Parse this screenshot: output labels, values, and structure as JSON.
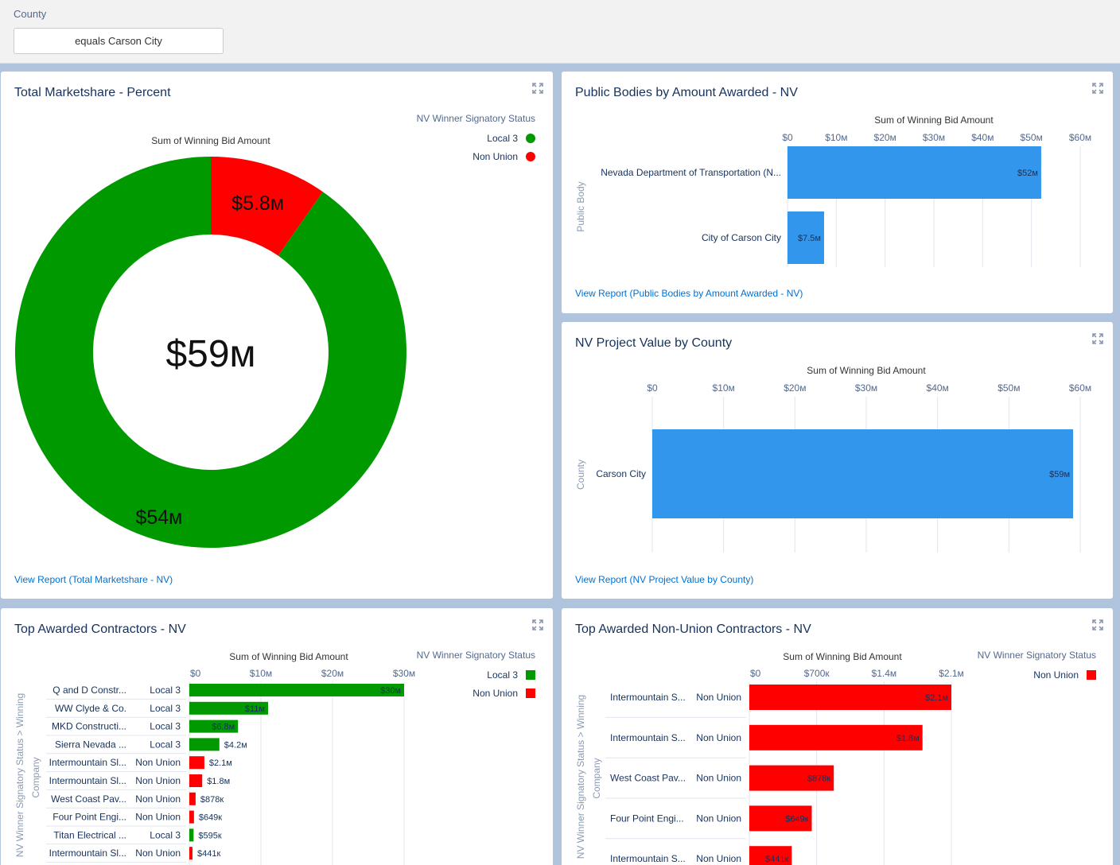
{
  "filter": {
    "label": "County",
    "value": "equals Carson City"
  },
  "colors": {
    "local3": "#009900",
    "non_union": "#ff0000",
    "bar_blue": "#3296ed",
    "link": "#0070d2"
  },
  "cards": {
    "marketshare": {
      "title": "Total Marketshare - Percent",
      "view_report": "View Report (Total Marketshare - NV)",
      "legend_title": "NV Winner Signatory Status",
      "legend": [
        "Local 3",
        "Non Union"
      ],
      "chart_data": {
        "type": "pie",
        "title": "Sum of Winning Bid Amount",
        "center_label": "$59м",
        "slices": [
          {
            "label": "Local 3",
            "value": 54,
            "display": "$54м",
            "color": "#009900"
          },
          {
            "label": "Non Union",
            "value": 5.8,
            "display": "$5.8м",
            "color": "#ff0000"
          }
        ]
      }
    },
    "public_bodies": {
      "title": "Public Bodies by Amount Awarded - NV",
      "view_report": "View Report (Public Bodies by Amount Awarded - NV)",
      "y_axis_label": "Public Body",
      "chart_data": {
        "type": "bar",
        "title": "Sum of Winning Bid Amount",
        "xlim": [
          0,
          60
        ],
        "ticks": [
          "$0",
          "$10м",
          "$20м",
          "$30м",
          "$40м",
          "$50м",
          "$60м"
        ],
        "categories": [
          "Nevada Department of Transportation (N...",
          "City of Carson City"
        ],
        "values": [
          52,
          7.5
        ],
        "labels": [
          "$52м",
          "$7.5м"
        ]
      }
    },
    "county": {
      "title": "NV Project Value by County",
      "view_report": "View Report (NV Project Value by County)",
      "y_axis_label": "County",
      "chart_data": {
        "type": "bar",
        "title": "Sum of Winning Bid Amount",
        "xlim": [
          0,
          60
        ],
        "ticks": [
          "$0",
          "$10м",
          "$20м",
          "$30м",
          "$40м",
          "$50м",
          "$60м"
        ],
        "categories": [
          "Carson City"
        ],
        "values": [
          59
        ],
        "labels": [
          "$59м"
        ]
      }
    },
    "top_contractors": {
      "title": "Top Awarded Contractors - NV",
      "legend_title": "NV Winner Signatory Status",
      "legend": [
        "Local 3",
        "Non Union"
      ],
      "y_axis_label_1": "NV Winner Signatory Status  >  Winning",
      "y_axis_label_2": "Company",
      "chart_data": {
        "type": "bar",
        "title": "Sum of Winning Bid Amount",
        "xlim": [
          0,
          30
        ],
        "ticks": [
          "$0",
          "$10м",
          "$20м",
          "$30м"
        ],
        "rows": [
          {
            "company": "Q and D Constr...",
            "status": "Local 3",
            "value": 30,
            "label": "$30м"
          },
          {
            "company": "WW Clyde & Co.",
            "status": "Local 3",
            "value": 11,
            "label": "$11м"
          },
          {
            "company": "MKD Constructi...",
            "status": "Local 3",
            "value": 6.8,
            "label": "$6.8м"
          },
          {
            "company": "Sierra Nevada ...",
            "status": "Local 3",
            "value": 4.2,
            "label": "$4.2м"
          },
          {
            "company": "Intermountain Sl...",
            "status": "Non Union",
            "value": 2.1,
            "label": "$2.1м"
          },
          {
            "company": "Intermountain Sl...",
            "status": "Non Union",
            "value": 1.8,
            "label": "$1.8м"
          },
          {
            "company": "West Coast Pav...",
            "status": "Non Union",
            "value": 0.878,
            "label": "$878к"
          },
          {
            "company": "Four Point Engi...",
            "status": "Non Union",
            "value": 0.649,
            "label": "$649к"
          },
          {
            "company": "Titan Electrical ...",
            "status": "Local 3",
            "value": 0.595,
            "label": "$595к"
          },
          {
            "company": "Intermountain Sl...",
            "status": "Non Union",
            "value": 0.441,
            "label": "$441к"
          }
        ]
      }
    },
    "non_union": {
      "title": "Top Awarded Non-Union Contractors - NV",
      "legend_title": "NV Winner Signatory Status",
      "legend": [
        "Non Union"
      ],
      "y_axis_label_1": "NV Winner Signatory Status  >  Winning",
      "y_axis_label_2": "Company",
      "chart_data": {
        "type": "bar",
        "title": "Sum of Winning Bid Amount",
        "xlim": [
          0,
          2.1
        ],
        "ticks": [
          "$0",
          "$700к",
          "$1.4м",
          "$2.1м"
        ],
        "rows": [
          {
            "company": "Intermountain S...",
            "status": "Non Union",
            "value": 2.1,
            "label": "$2.1м"
          },
          {
            "company": "Intermountain S...",
            "status": "Non Union",
            "value": 1.8,
            "label": "$1.8м"
          },
          {
            "company": "West Coast Pav...",
            "status": "Non Union",
            "value": 0.878,
            "label": "$878к"
          },
          {
            "company": "Four Point Engi...",
            "status": "Non Union",
            "value": 0.649,
            "label": "$649к"
          },
          {
            "company": "Intermountain S...",
            "status": "Non Union",
            "value": 0.441,
            "label": "$441к"
          }
        ]
      }
    }
  }
}
